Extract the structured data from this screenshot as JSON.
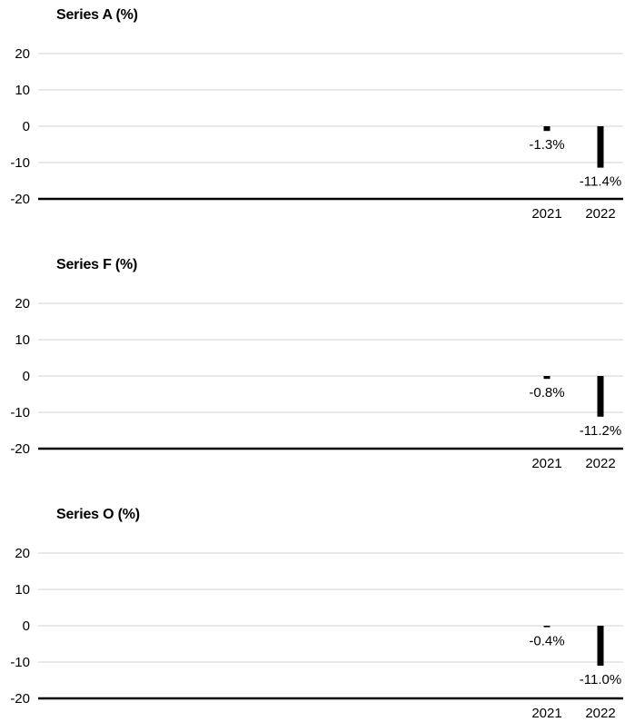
{
  "chart_data": [
    {
      "type": "bar",
      "title": "Series A (%)",
      "categories": [
        "2021",
        "2022"
      ],
      "values": [
        -1.3,
        -11.4
      ],
      "data_labels": [
        "-1.3%",
        "-11.4%"
      ],
      "yticks": [
        "20",
        "10",
        "0",
        "-10",
        "-20"
      ],
      "ylim": [
        -20,
        20
      ],
      "grid": true
    },
    {
      "type": "bar",
      "title": "Series F (%)",
      "categories": [
        "2021",
        "2022"
      ],
      "values": [
        -0.8,
        -11.2
      ],
      "data_labels": [
        "-0.8%",
        "-11.2%"
      ],
      "yticks": [
        "20",
        "10",
        "0",
        "-10",
        "-20"
      ],
      "ylim": [
        -20,
        20
      ],
      "grid": true
    },
    {
      "type": "bar",
      "title": "Series O (%)",
      "categories": [
        "2021",
        "2022"
      ],
      "values": [
        -0.4,
        -11.0
      ],
      "data_labels": [
        "-0.4%",
        "-11.0%"
      ],
      "yticks": [
        "20",
        "10",
        "0",
        "-10",
        "-20"
      ],
      "ylim": [
        -20,
        20
      ],
      "grid": true
    }
  ]
}
